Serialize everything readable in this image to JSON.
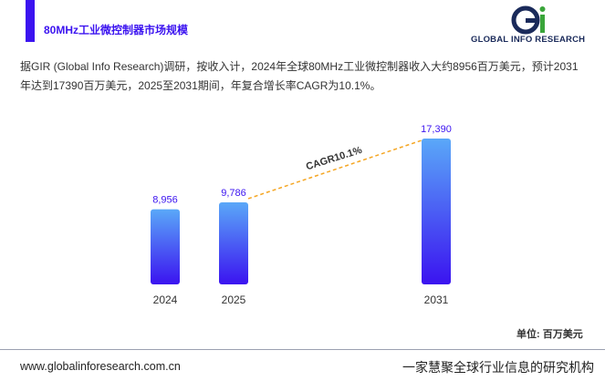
{
  "header": {
    "title": "80MHz工业微控制器市场规模",
    "logo_text": "GLOBAL INFO RESEARCH"
  },
  "paragraph": "据GIR (Global Info Research)调研，按收入计，2024年全球80MHz工业微控制器收入大约8956百万美元，预计2031年达到17390百万美元，2025至2031期间，年复合增长率CAGR为10.1%。",
  "chart_data": {
    "type": "bar",
    "categories": [
      "2024",
      "2025",
      "2031"
    ],
    "values": [
      8956,
      9786,
      17390
    ],
    "value_labels": [
      "8,956",
      "9,786",
      "17,390"
    ],
    "color": "#3b13f0",
    "annotation": "CAGR10.1%",
    "unit": "单位: 百万美元"
  },
  "footer": {
    "website": "www.globalinforesearch.com.cn",
    "slogan": "一家慧聚全球行业信息的研究机构"
  }
}
